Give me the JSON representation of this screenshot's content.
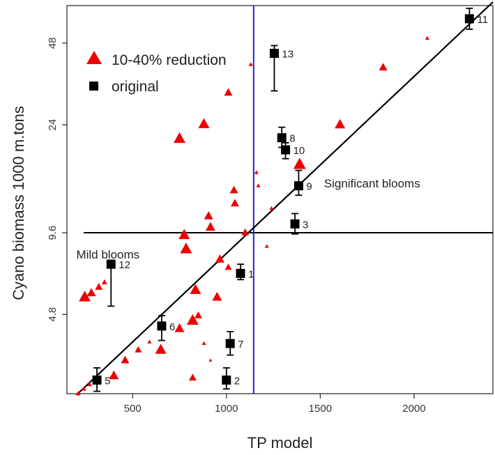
{
  "chart_data": {
    "type": "scatter",
    "xlabel": "TP  model",
    "ylabel": "Cyano biomass 1000 m.tons",
    "y_scale": "log",
    "xlim": [
      150,
      2420
    ],
    "ylim": [
      2.45,
      66
    ],
    "x_ticks": [
      500,
      1000,
      1500,
      2000
    ],
    "y_ticks": [
      {
        "value": 4.8,
        "label": "4.8"
      },
      {
        "value": 9.6,
        "label": "9.6"
      },
      {
        "value": 24,
        "label": "24"
      },
      {
        "value": 48,
        "label": "48"
      }
    ],
    "threshold_lines": {
      "horizontal_y": 9.6,
      "vertical_x": 1145,
      "vertical_color": "#2222cc"
    },
    "fit_line": {
      "x": [
        200,
        2420
      ],
      "y": [
        2.3,
        68
      ],
      "color": "#000000"
    },
    "legend": {
      "position": "top-left",
      "entries": [
        {
          "label": "10-40% reduction",
          "marker": "triangle",
          "color": "#ee0000"
        },
        {
          "label": "original",
          "marker": "square",
          "color": "#000000"
        }
      ]
    },
    "region_labels": [
      {
        "text": "Significant blooms",
        "x": 1520,
        "y": 14.6
      },
      {
        "text": "Mild blooms",
        "x": 200,
        "y": 8.0
      }
    ],
    "series": [
      {
        "name": "10-40% reduction",
        "marker": "triangle",
        "color": "#ee0000",
        "points": [
          [
            210,
            2.45,
            7
          ],
          [
            240,
            2.55,
            7
          ],
          [
            270,
            2.65,
            7
          ],
          [
            245,
            5.55,
            17
          ],
          [
            280,
            5.75,
            13
          ],
          [
            320,
            6.05,
            11
          ],
          [
            350,
            6.3,
            8
          ],
          [
            400,
            2.85,
            14
          ],
          [
            460,
            3.25,
            12
          ],
          [
            530,
            3.55,
            10
          ],
          [
            590,
            3.8,
            6
          ],
          [
            650,
            3.55,
            16
          ],
          [
            750,
            4.25,
            14
          ],
          [
            820,
            4.55,
            17
          ],
          [
            850,
            4.75,
            11
          ],
          [
            835,
            5.9,
            16
          ],
          [
            785,
            8.35,
            17
          ],
          [
            775,
            9.4,
            16
          ],
          [
            880,
            3.75,
            6
          ],
          [
            950,
            5.55,
            14
          ],
          [
            965,
            7.65,
            13
          ],
          [
            1010,
            7.15,
            10
          ],
          [
            915,
            10.05,
            14
          ],
          [
            905,
            11.05,
            13
          ],
          [
            1045,
            12.3,
            12
          ],
          [
            1040,
            13.75,
            12
          ],
          [
            1100,
            9.6,
            11
          ],
          [
            1170,
            14.3,
            6
          ],
          [
            1160,
            16.0,
            6
          ],
          [
            1240,
            11.8,
            6
          ],
          [
            1215,
            8.55,
            6
          ],
          [
            1130,
            40.0,
            6
          ],
          [
            750,
            21.3,
            17
          ],
          [
            880,
            24.1,
            16
          ],
          [
            1010,
            31.5,
            12
          ],
          [
            1390,
            17.1,
            18
          ],
          [
            1605,
            24.0,
            15
          ],
          [
            1835,
            39.0,
            12
          ],
          [
            2070,
            50.0,
            6
          ],
          [
            820,
            2.8,
            11
          ],
          [
            915,
            3.25,
            5
          ]
        ]
      },
      {
        "name": "original",
        "marker": "square",
        "color": "#000000",
        "points": [
          {
            "label": "1",
            "x": 1075,
            "y": 6.8,
            "err": [
              6.45,
              7.35
            ]
          },
          {
            "label": "2",
            "x": 1000,
            "y": 2.75,
            "err": [
              2.55,
              3.05
            ]
          },
          {
            "label": "3",
            "x": 1365,
            "y": 10.35,
            "err": [
              9.5,
              11.3
            ]
          },
          {
            "label": "5",
            "x": 310,
            "y": 2.75,
            "err": [
              2.5,
              3.05
            ]
          },
          {
            "label": "6",
            "x": 655,
            "y": 4.35,
            "err": [
              3.85,
              4.75
            ]
          },
          {
            "label": "7",
            "x": 1020,
            "y": 3.75,
            "err": [
              3.4,
              4.15
            ]
          },
          {
            "label": "8",
            "x": 1295,
            "y": 21.5,
            "err": [
              19.8,
              23.5
            ]
          },
          {
            "label": "9",
            "x": 1385,
            "y": 14.3,
            "err": [
              13.2,
              16.3
            ]
          },
          {
            "label": "10",
            "x": 1315,
            "y": 19.4,
            "err": [
              18.0,
              20.6
            ]
          },
          {
            "label": "11",
            "x": 2295,
            "y": 59.0,
            "err": [
              54.0,
              64.5
            ]
          },
          {
            "label": "12",
            "x": 385,
            "y": 7.35,
            "err": [
              5.15,
              7.6
            ]
          },
          {
            "label": "13",
            "x": 1255,
            "y": 44.0,
            "err": [
              32.0,
              47.0
            ]
          }
        ]
      }
    ]
  }
}
